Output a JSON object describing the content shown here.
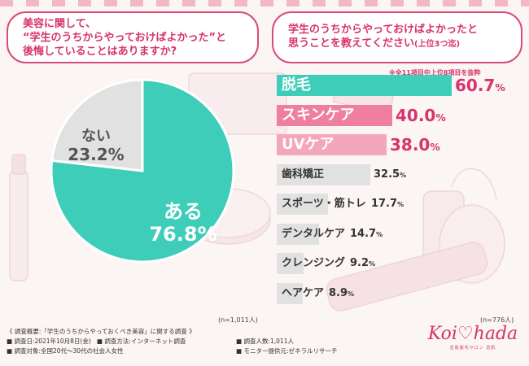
{
  "colors": {
    "accent": "#d7336e",
    "pie_yes": "#3ecdb8",
    "pie_no": "#e1e1e1",
    "bar_top1": "#3ecdb8",
    "bar_top2": "#ef7fa0",
    "bar_top3": "#f4a6bf",
    "bar_other": "#e1e1e1"
  },
  "left_question": {
    "line1": "美容に関して、",
    "line2": "“学生のうちからやっておけばよかった”と",
    "line3": "後悔していることはありますか?"
  },
  "right_question": {
    "line1": "学生のうちからやっておけばよかったと",
    "line2": "思うことを教えてください",
    "line2_paren": "(上位3つ迄)"
  },
  "chart_data": [
    {
      "type": "pie",
      "title": "",
      "slices": [
        {
          "label": "ある",
          "value": 76.8,
          "display": "76.8%"
        },
        {
          "label": "ない",
          "value": 23.2,
          "display": "23.2%"
        }
      ],
      "sample_note": "(n=1,011人)"
    },
    {
      "type": "bar",
      "title": "",
      "note": "※全11項目中上位8項目を抜粋",
      "categories": [
        "脱毛",
        "スキンケア",
        "UVケア",
        "歯科矯正",
        "スポーツ・筋トレ",
        "デンタルケア",
        "クレンジング",
        "ヘアケア"
      ],
      "values": [
        60.7,
        40.0,
        38.0,
        32.5,
        17.7,
        14.7,
        9.2,
        8.9
      ],
      "labels": [
        "60.7",
        "40.0",
        "38.0",
        "32.5",
        "17.7",
        "14.7",
        "9.2",
        "8.9"
      ],
      "unit": "%",
      "xlim": [
        0,
        100
      ],
      "sample_note": "(n=776人)"
    }
  ],
  "footer": {
    "title": "《 調査概要:「学生のうちからやっておくべき美容」に関する調査 》",
    "date": "■ 調査日:2021年10月8日(金)",
    "method": "■ 調査方法:インターネット調査",
    "target": "■ 調査対象:全国20代〜30代の社会人女性",
    "count": "■ 調査人数:1,011人",
    "provider": "■ モニター提供元:ゼネラルリサーチ"
  },
  "logo": {
    "text": "Koi♡hada",
    "sub": "恋肌脱毛サロン 恋肌"
  }
}
